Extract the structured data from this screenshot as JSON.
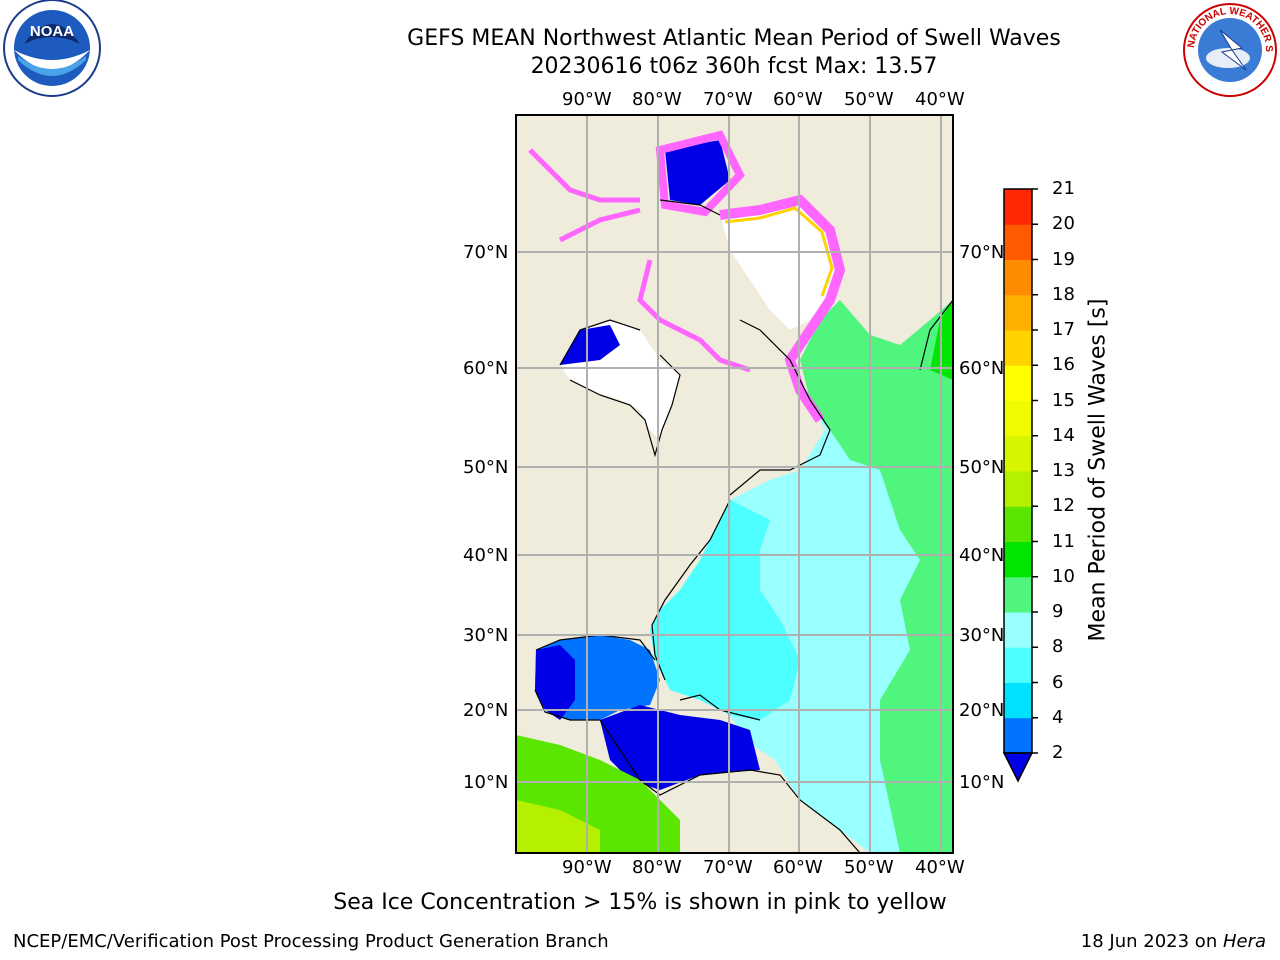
{
  "title_line1": "GEFS MEAN Northwest Atlantic Mean Period of Swell Waves",
  "title_line2": "20230616 t06z 360h fcst   Max: 13.57",
  "caption": "Sea Ice Concentration > 15% is shown in pink to yellow",
  "footer_left": "NCEP/EMC/Verification Post Processing Product Generation Branch",
  "footer_date": "18 Jun 2023 on ",
  "footer_host": "Hera",
  "logos": {
    "left": "noaa-logo",
    "right": "nws-logo",
    "left_text": "NOAA",
    "right_text": "NATIONAL WEATHER SERVICE"
  },
  "lon_labels": [
    "90°W",
    "80°W",
    "70°W",
    "60°W",
    "50°W",
    "40°W"
  ],
  "lat_labels": [
    "70°N",
    "60°N",
    "50°N",
    "40°N",
    "30°N",
    "20°N",
    "10°N"
  ],
  "colorbar": {
    "title": "Mean Period of Swell Waves [s]",
    "ticks": [
      "2",
      "4",
      "6",
      "8",
      "9",
      "10",
      "11",
      "12",
      "13",
      "14",
      "15",
      "16",
      "17",
      "18",
      "19",
      "20",
      "21"
    ],
    "colors": [
      "#0073ff",
      "#00e1ff",
      "#4dffff",
      "#99ffff",
      "#50f57d",
      "#00e600",
      "#5ae600",
      "#b4f000",
      "#d7f500",
      "#f0fa00",
      "#ffff00",
      "#ffd200",
      "#ffaf00",
      "#ff8c00",
      "#ff5a00",
      "#ff2800"
    ],
    "under_color": "#0000e6"
  },
  "map_colors": {
    "land": "#efecdc",
    "grid": "#b0b0b0",
    "ocean_light": "#99ffff",
    "ocean_mid": "#4dffff",
    "ocean_green": "#50f57d",
    "deep": "#0000e6",
    "ice": "#ff66ff",
    "land_green": "#5ae600"
  }
}
